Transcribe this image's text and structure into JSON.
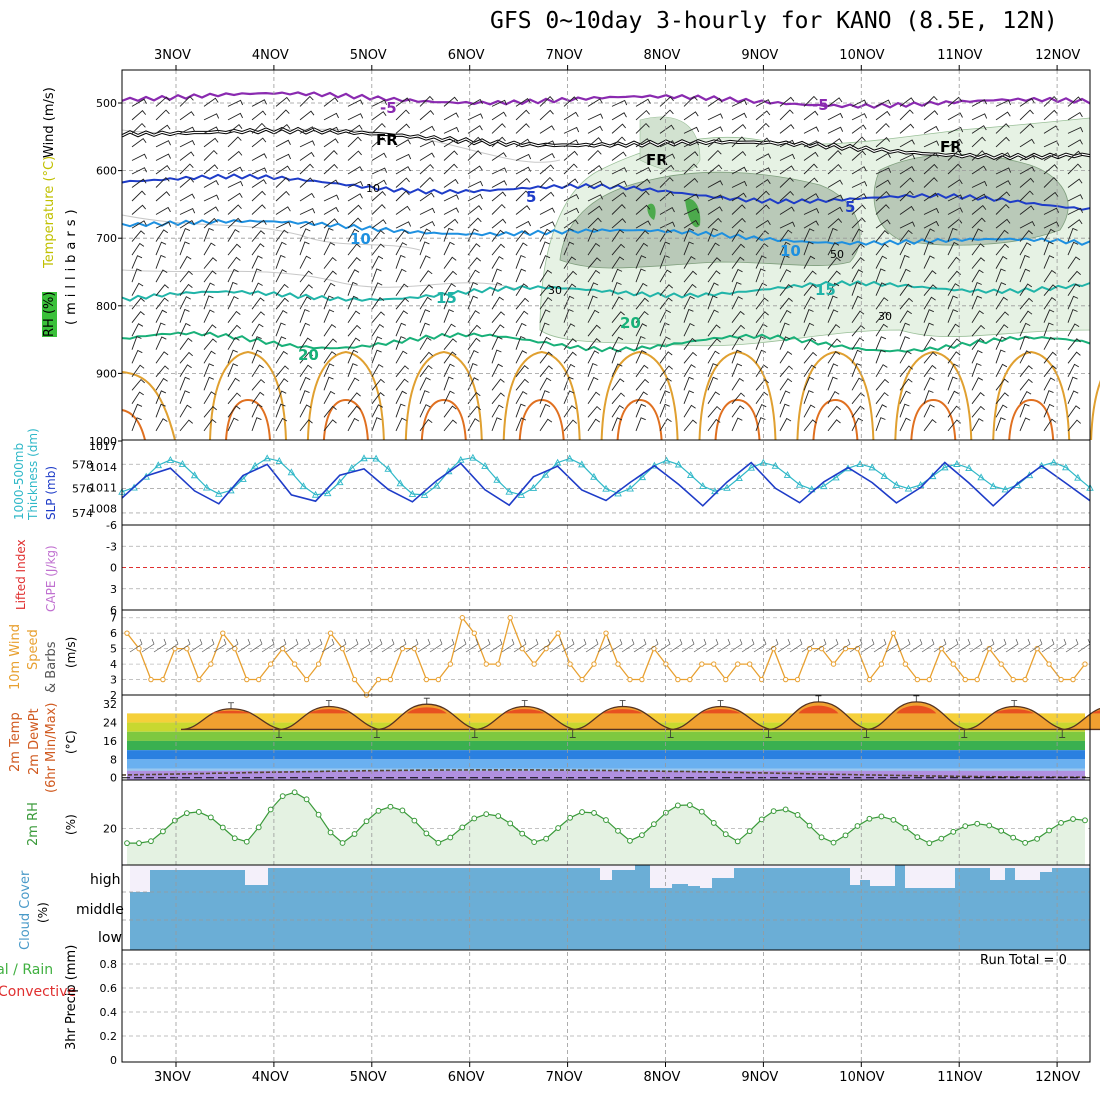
{
  "title": "GFS 0~10day 3-hourly for KANO (8.5E, 12N)",
  "dates": [
    "3NOV",
    "4NOV",
    "5NOV",
    "6NOV",
    "7NOV",
    "8NOV",
    "9NOV",
    "10NOV",
    "11NOV",
    "12NOV"
  ],
  "colors": {
    "accent_orange": "#e8a030",
    "cape": "#c070d0",
    "wind10m": "#e8a030",
    "slp": "#1e3cc8",
    "thickness": "#30b8c8",
    "rh": "#3a9a3a",
    "cloud": "#6baed6",
    "precip_total": "#40b040",
    "precip_conv": "#e03030"
  },
  "panels": {
    "upper_air": {
      "legend_wind": "Wind (m/s)",
      "legend_temp": "Temperature (°C)",
      "legend_rh": "RH (%)",
      "axis_label": "(millibars)",
      "y_ticks": [
        "500",
        "600",
        "700",
        "800",
        "900",
        "1000"
      ],
      "contour_labels": {
        "m5a": "-5",
        "m5b": "-5",
        "fr1": "FR",
        "fr2": "FR",
        "fr3": "FR",
        "p5a": "5",
        "p5b": "5",
        "p10a": "10",
        "p10b": "10",
        "p15a": "15",
        "p15b": "15",
        "p20a": "20",
        "p20b": "20",
        "rh30a": "30",
        "rh30b": "30",
        "rh50": "50",
        "rh10": "10"
      }
    },
    "thickness_slp": {
      "label_thickness": "1000-500mb",
      "label_thickness2": "Thickness (dm)",
      "label_slp": "SLP (mb)",
      "left_ticks": [
        "578",
        "576",
        "574"
      ],
      "right_ticks": [
        "1017",
        "1014",
        "1011",
        "1008"
      ]
    },
    "cape": {
      "label_li": "Lifted Index",
      "label_cape": "CAPE (J/kg)",
      "ticks": [
        "-6",
        "-3",
        "0",
        "3",
        "6"
      ]
    },
    "wind10m": {
      "label_a": "10m Wind",
      "label_b": "Speed",
      "label_c": "& Barbs",
      "label_d": "(m/s)",
      "ticks": [
        "7",
        "6",
        "5",
        "4",
        "3",
        "2"
      ]
    },
    "temp2m": {
      "label_a": "2m Temp",
      "label_b": "2m DewPt",
      "label_c": "(6hr Min/Max)",
      "label_d": "(°C)",
      "ticks": [
        "32",
        "24",
        "16",
        "8",
        "0"
      ]
    },
    "rh2m": {
      "label_a": "2m RH",
      "label_b": "(%)",
      "ticks": [
        "20"
      ]
    },
    "cloud": {
      "label_a": "Cloud Cover",
      "label_b": "(%)",
      "levels": [
        "high",
        "middle",
        "low"
      ]
    },
    "precip": {
      "label_total": "Total / Rain",
      "label_conv": "Convective",
      "label_axis": "3hr Precip (mm)",
      "run_total": "Run Total = 0",
      "ticks": [
        "0.8",
        "0.6",
        "0.4",
        "0.2",
        "0"
      ]
    }
  },
  "chart_data": [
    {
      "type": "line",
      "name": "Thickness / SLP",
      "x": [
        "3NOV",
        "4NOV",
        "5NOV",
        "6NOV",
        "7NOV",
        "8NOV",
        "9NOV",
        "10NOV",
        "11NOV",
        "12NOV"
      ],
      "series": [
        {
          "name": "1000-500mb Thickness (dm)",
          "values": [
            578.0,
            577.8,
            578.1,
            577.6,
            577.7,
            577.8,
            578.1,
            577.7,
            577.5,
            577.1
          ]
        },
        {
          "name": "SLP (mb)",
          "values": [
            1013,
            1010,
            1013,
            1010,
            1013,
            1011,
            1014,
            1010,
            1012,
            1011
          ]
        }
      ],
      "ylim_left": [
        573.5,
        579.5
      ],
      "ylim_right": [
        1006.5,
        1017
      ]
    },
    {
      "type": "line",
      "name": "10m Wind Speed",
      "y": [
        6,
        5,
        3,
        3,
        5,
        5,
        3,
        4,
        6,
        5,
        3,
        3,
        4,
        5,
        4,
        3,
        4,
        6,
        5,
        3,
        2,
        3,
        3,
        5,
        5,
        3,
        3,
        4,
        7,
        6,
        4,
        4,
        7,
        5,
        4,
        5,
        6,
        4,
        3,
        4,
        6,
        4,
        3,
        3,
        5,
        4,
        3,
        3,
        4,
        4,
        3,
        4,
        4,
        3,
        5,
        3,
        3,
        5,
        5,
        4,
        5,
        5,
        3,
        4,
        6,
        4,
        3,
        3,
        5,
        4,
        3,
        3,
        5,
        4,
        3,
        3,
        5,
        4,
        3,
        3,
        4
      ],
      "ylim": [
        2,
        7.5
      ]
    },
    {
      "type": "area",
      "name": "2m Temp (°C)",
      "x": [
        "3NOV",
        "4NOV",
        "5NOV",
        "6NOV",
        "7NOV",
        "8NOV",
        "9NOV",
        "10NOV",
        "11NOV",
        "12NOV"
      ],
      "max": [
        30,
        31,
        32,
        31,
        31,
        31,
        33,
        33,
        31,
        31
      ],
      "min": [
        21,
        21,
        21,
        21,
        21,
        21,
        21,
        21,
        21,
        21
      ],
      "dewpoint": [
        0,
        1,
        2,
        3,
        2,
        3,
        2,
        3,
        1,
        0
      ],
      "ylim": [
        -1,
        36
      ]
    },
    {
      "type": "area",
      "name": "2m RH (%)",
      "x": [
        "3NOV",
        "4NOV",
        "5NOV",
        "6NOV",
        "7NOV",
        "8NOV",
        "9NOV",
        "10NOV",
        "11NOV",
        "12NOV"
      ],
      "peaks": [
        27,
        35,
        29,
        26,
        27,
        30,
        28,
        25,
        22,
        24
      ],
      "troughs": [
        14,
        14,
        14,
        14,
        14,
        16,
        14,
        14,
        14,
        14
      ],
      "ylim": [
        5,
        40
      ]
    },
    {
      "type": "bar",
      "name": "3hr Precip (mm)",
      "x": [
        "3NOV",
        "4NOV",
        "5NOV",
        "6NOV",
        "7NOV",
        "8NOV",
        "9NOV",
        "10NOV",
        "11NOV",
        "12NOV"
      ],
      "values": [
        0,
        0,
        0,
        0,
        0,
        0,
        0,
        0,
        0,
        0
      ],
      "ylim": [
        0,
        0.9
      ]
    }
  ]
}
